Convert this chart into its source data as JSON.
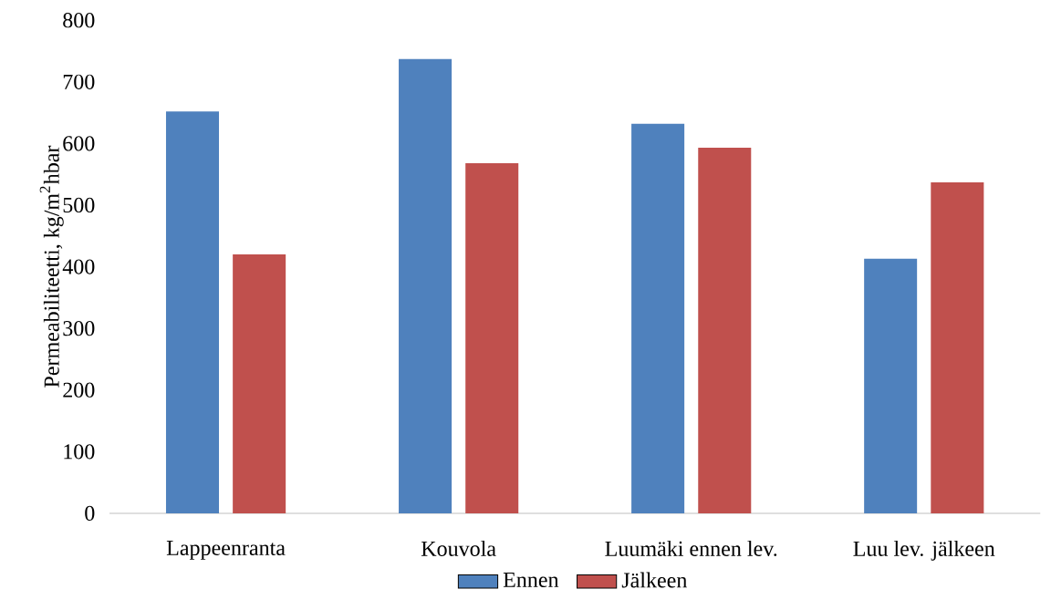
{
  "chart_data": {
    "type": "bar",
    "ylabel": "Permeabiliteetti, kg/m$^{2}$hbar",
    "categories": [
      "Lappeenranta",
      "Kouvola",
      "Luumäki ennen lev.",
      "Luu lev. jälkeen"
    ],
    "series": [
      {
        "name": "Ennen",
        "color": "#4f81bd",
        "values": [
          652,
          737,
          632,
          413
        ]
      },
      {
        "name": "Jälkeen",
        "color": "#c0504d",
        "values": [
          420,
          568,
          593,
          537
        ]
      }
    ],
    "ylim": [
      0,
      800
    ],
    "yticks": [
      0,
      100,
      200,
      300,
      400,
      500,
      600,
      700,
      800
    ],
    "legend": "bottom"
  }
}
